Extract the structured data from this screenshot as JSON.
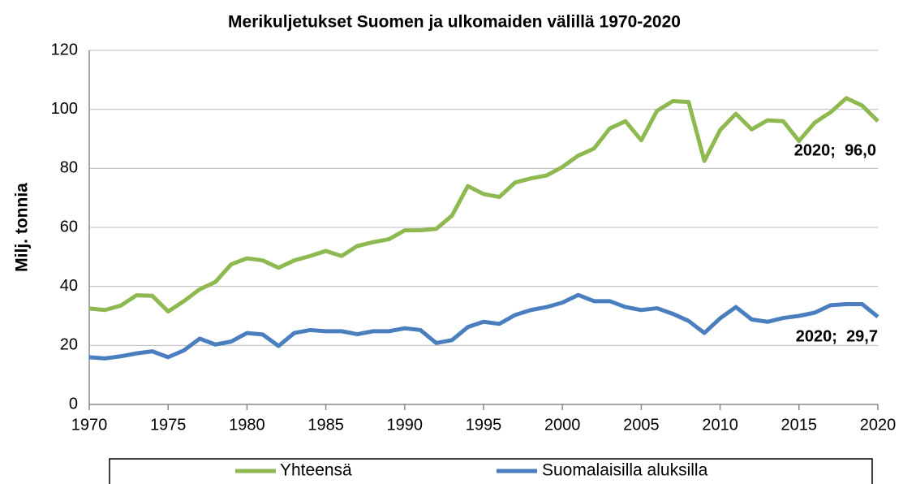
{
  "chart_data": {
    "type": "line",
    "title": "Merikuljetukset Suomen ja ulkomaiden välillä 1970-2020",
    "y_label": "Milj. tonnia",
    "x": [
      1970,
      1971,
      1972,
      1973,
      1974,
      1975,
      1976,
      1977,
      1978,
      1979,
      1980,
      1981,
      1982,
      1983,
      1984,
      1985,
      1986,
      1987,
      1988,
      1989,
      1990,
      1991,
      1992,
      1993,
      1994,
      1995,
      1996,
      1997,
      1998,
      1999,
      2000,
      2001,
      2002,
      2003,
      2004,
      2005,
      2006,
      2007,
      2008,
      2009,
      2010,
      2011,
      2012,
      2013,
      2014,
      2015,
      2016,
      2017,
      2018,
      2019,
      2020
    ],
    "series": [
      {
        "name": "Yhteensä",
        "color": "#8db950",
        "values": [
          32.5,
          32,
          33.5,
          37,
          36.8,
          31.5,
          35,
          39,
          41.5,
          47.5,
          49.5,
          48.8,
          46.3,
          48.8,
          50.3,
          52,
          50.3,
          53.7,
          55,
          56,
          59,
          59,
          59.5,
          64,
          74,
          71.3,
          70.3,
          75.2,
          76.6,
          77.6,
          80.5,
          84.3,
          86.7,
          93.5,
          96,
          89.5,
          99.5,
          102.8,
          102.5,
          82.5,
          93,
          98.5,
          93.2,
          96.3,
          96,
          89.3,
          95.5,
          99,
          103.8,
          101.3,
          96.0
        ]
      },
      {
        "name": "Suomalaisilla aluksilla",
        "color": "#4a7ebf",
        "values": [
          16,
          15.6,
          16.3,
          17.3,
          18,
          16,
          18.3,
          22.3,
          20.3,
          21.3,
          24.2,
          23.7,
          19.8,
          24.2,
          25.2,
          24.8,
          24.8,
          23.8,
          24.8,
          24.8,
          25.8,
          25.2,
          20.8,
          21.8,
          26.2,
          28,
          27.3,
          30.3,
          32,
          33,
          34.5,
          37.1,
          35,
          35,
          33,
          32,
          32.6,
          30.7,
          28.3,
          24.2,
          29.2,
          33,
          28.8,
          28,
          29.3,
          30,
          31.1,
          33.6,
          34,
          34,
          29.7
        ]
      }
    ],
    "annotations": [
      "2020;  96,0",
      "2020;  29,7"
    ],
    "xlim": [
      1970,
      2020
    ],
    "xticks": [
      1970,
      1975,
      1980,
      1985,
      1990,
      1995,
      2000,
      2005,
      2010,
      2015,
      2020
    ],
    "ylim": [
      0,
      120
    ],
    "yticks": [
      0,
      20,
      40,
      60,
      80,
      100,
      120
    ],
    "grid": true,
    "legend": "bottom"
  }
}
